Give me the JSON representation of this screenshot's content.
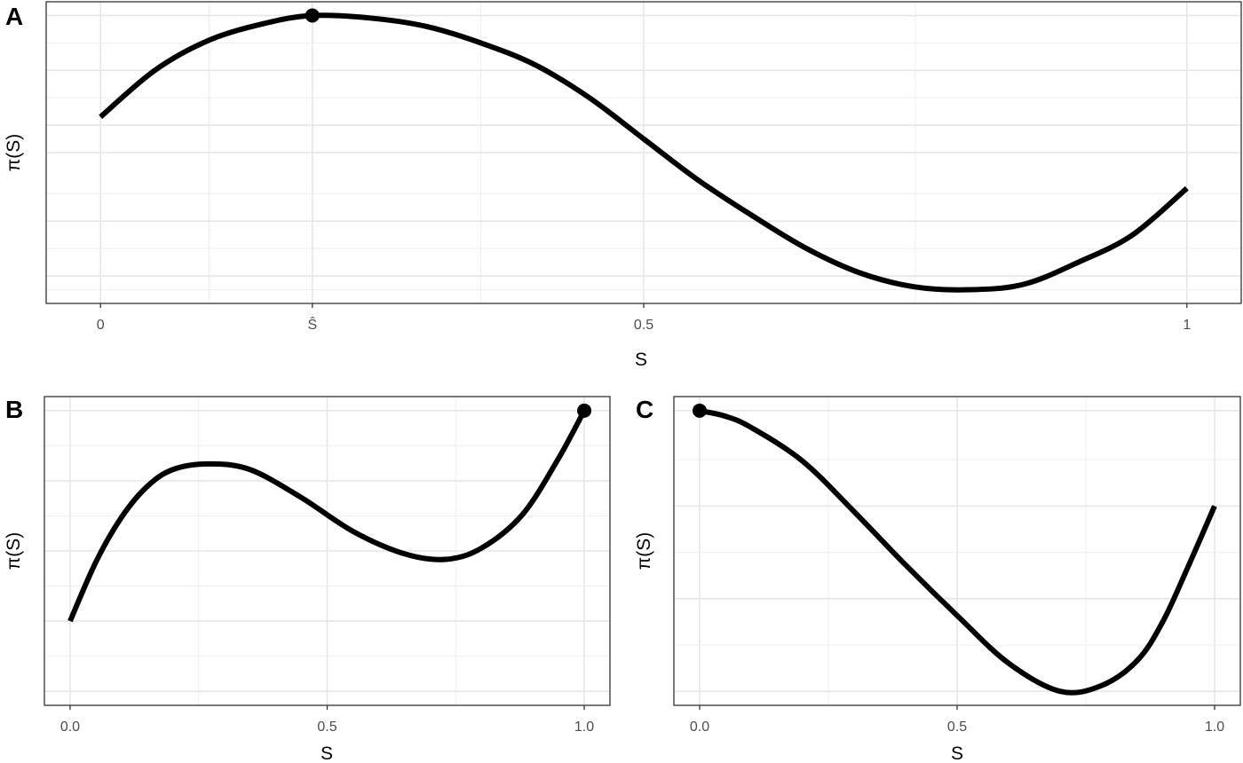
{
  "chart_data": [
    {
      "panel": "A",
      "type": "line",
      "xlabel": "S",
      "ylabel": "π(S)",
      "xlim": [
        -0.05,
        1.05
      ],
      "ylim": [
        -0.05,
        1.05
      ],
      "x_ticks": [
        {
          "value": 0,
          "label": "0"
        },
        {
          "value": 0.195,
          "label": "Ŝ"
        },
        {
          "value": 0.5,
          "label": "0.5"
        },
        {
          "value": 1,
          "label": "1"
        }
      ],
      "x_minor_gridlines": [
        0.1,
        0.35,
        0.75
      ],
      "y_major_gridlines": [
        0.05,
        0.25,
        0.5,
        0.6,
        0.8,
        1.0
      ],
      "y_minor_gridlines": [
        0.0,
        0.15,
        0.35,
        0.7,
        0.9
      ],
      "y_ticks_labeled": false,
      "grid": true,
      "series": [
        {
          "x": [
            0,
            0.05,
            0.1,
            0.15,
            0.195,
            0.25,
            0.3,
            0.35,
            0.4,
            0.45,
            0.5,
            0.55,
            0.6,
            0.65,
            0.7,
            0.75,
            0.8,
            0.85,
            0.9,
            0.95,
            1.0
          ],
          "y": [
            0.63,
            0.8,
            0.91,
            0.97,
            1.0,
            0.99,
            0.96,
            0.9,
            0.82,
            0.7,
            0.55,
            0.4,
            0.27,
            0.15,
            0.06,
            0.01,
            0.0,
            0.02,
            0.1,
            0.2,
            0.37
          ]
        }
      ],
      "highlight_point": {
        "x": 0.195,
        "y": 1.0
      }
    },
    {
      "panel": "B",
      "type": "line",
      "xlabel": "S",
      "ylabel": "π(S)",
      "xlim": [
        -0.05,
        1.05
      ],
      "ylim": [
        -0.05,
        1.05
      ],
      "x_ticks": [
        {
          "value": 0,
          "label": "0.0"
        },
        {
          "value": 0.5,
          "label": "0.5"
        },
        {
          "value": 1,
          "label": "1.0"
        }
      ],
      "x_minor_gridlines": [
        0.25,
        0.75
      ],
      "y_major_gridlines": [
        0.0,
        0.25,
        0.5,
        0.75,
        1.0
      ],
      "y_minor_gridlines": [
        0.125,
        0.375,
        0.625,
        0.875
      ],
      "y_ticks_labeled": false,
      "grid": true,
      "series": [
        {
          "x": [
            0,
            0.05,
            0.1,
            0.15,
            0.2,
            0.27,
            0.35,
            0.45,
            0.55,
            0.65,
            0.73,
            0.8,
            0.88,
            0.95,
            1.0
          ],
          "y": [
            0.25,
            0.46,
            0.62,
            0.73,
            0.79,
            0.81,
            0.79,
            0.69,
            0.57,
            0.49,
            0.47,
            0.51,
            0.63,
            0.83,
            1.0
          ]
        }
      ],
      "highlight_point": {
        "x": 1.0,
        "y": 1.0
      }
    },
    {
      "panel": "C",
      "type": "line",
      "xlabel": "S",
      "ylabel": "π(S)",
      "xlim": [
        -0.05,
        1.05
      ],
      "ylim": [
        -0.05,
        1.05
      ],
      "x_ticks": [
        {
          "value": 0,
          "label": "0.0"
        },
        {
          "value": 0.5,
          "label": "0.5"
        },
        {
          "value": 1,
          "label": "1.0"
        }
      ],
      "x_minor_gridlines": [
        0.25,
        0.75
      ],
      "y_major_gridlines": [
        0.0,
        0.33,
        0.66,
        1.0
      ],
      "y_minor_gridlines": [
        0.165,
        0.495,
        0.825
      ],
      "y_ticks_labeled": false,
      "grid": true,
      "series": [
        {
          "x": [
            0,
            0.05,
            0.1,
            0.2,
            0.3,
            0.4,
            0.5,
            0.6,
            0.7,
            0.78,
            0.85,
            0.9,
            0.95,
            1.0
          ],
          "y": [
            1.0,
            0.98,
            0.94,
            0.82,
            0.64,
            0.45,
            0.27,
            0.1,
            0.0,
            0.02,
            0.11,
            0.25,
            0.45,
            0.66
          ]
        }
      ],
      "highlight_point": {
        "x": 0.0,
        "y": 1.0
      }
    }
  ]
}
